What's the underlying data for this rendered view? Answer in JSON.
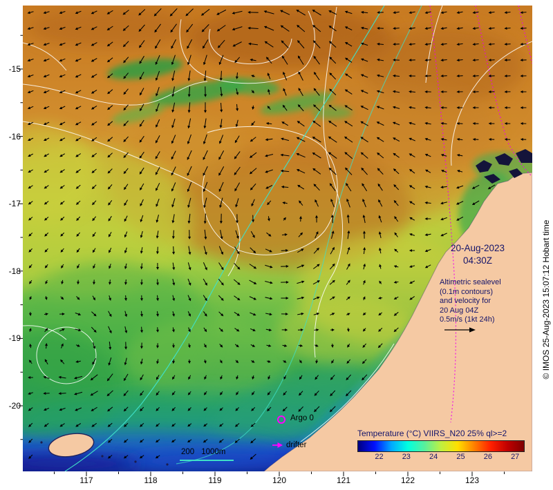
{
  "annotations": {
    "date": "20-Aug-2023",
    "time": "04:30Z",
    "note_lines": [
      "Altimetric sealevel",
      "(0.1m contours)",
      "and velocity for",
      "20 Aug 04Z",
      "0.5m/s (1kt 24h)"
    ],
    "credit": "© IMOS 25-Aug-2023 15:07:12 Hobart time"
  },
  "legend": {
    "argo": "Argo 0",
    "drifter": "drifter",
    "isobaths": [
      "200",
      "1000m"
    ]
  },
  "colorbar": {
    "title": "Temperature (°C) VIIRS_N20 25% ql>=2",
    "tick_values": [
      22,
      23,
      24,
      25,
      26,
      27
    ],
    "range_min": 21.2,
    "range_max": 27.3,
    "palette": [
      "#000080",
      "#0010ff",
      "#00a8ff",
      "#00ffe0",
      "#58f09d",
      "#c0f040",
      "#ffe000",
      "#ff8000",
      "#ff2000",
      "#c00000",
      "#7f0000"
    ]
  },
  "axes": {
    "x_label_values": [
      117,
      118,
      119,
      120,
      121,
      122,
      123
    ],
    "y_label_values": [
      -15,
      -16,
      -17,
      -18,
      -19,
      -20
    ]
  },
  "colors": {
    "land": "#f5c9a3",
    "swath": "#ee00ee",
    "isobath": "#3fe0c8",
    "annotation": "#14146a",
    "vector": "#000000"
  }
}
